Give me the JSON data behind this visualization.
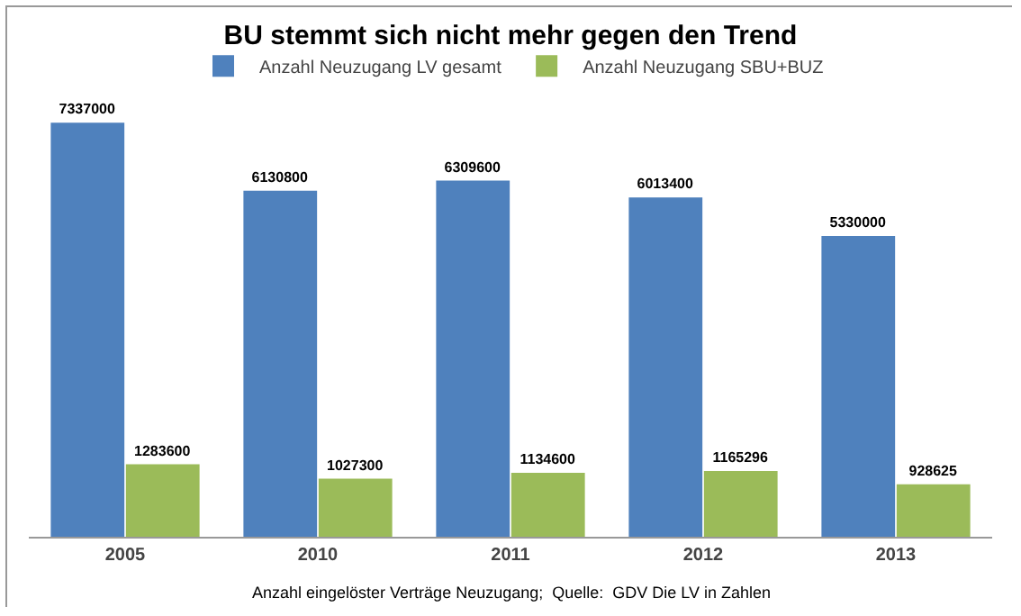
{
  "chart_data": {
    "type": "bar",
    "title": "BU stemmt sich nicht mehr gegen den Trend",
    "categories": [
      "2005",
      "2010",
      "2011",
      "2012",
      "2013"
    ],
    "series": [
      {
        "name": "Anzahl Neuzugang LV gesamt",
        "color": "#4f81bd",
        "values": [
          7337000,
          6130800,
          6309600,
          6013400,
          5330000
        ]
      },
      {
        "name": "Anzahl Neuzugang SBU+BUZ",
        "color": "#9bbb59",
        "values": [
          1283600,
          1027300,
          1134600,
          1165296,
          928625
        ]
      }
    ],
    "data_labels": true,
    "grid": false,
    "legend": "top",
    "tick_labels": "x",
    "annotations": [
      "Anzahl eingelöster Verträge Neuzugang;  Quelle:  GDV Die LV in Zahlen"
    ]
  }
}
